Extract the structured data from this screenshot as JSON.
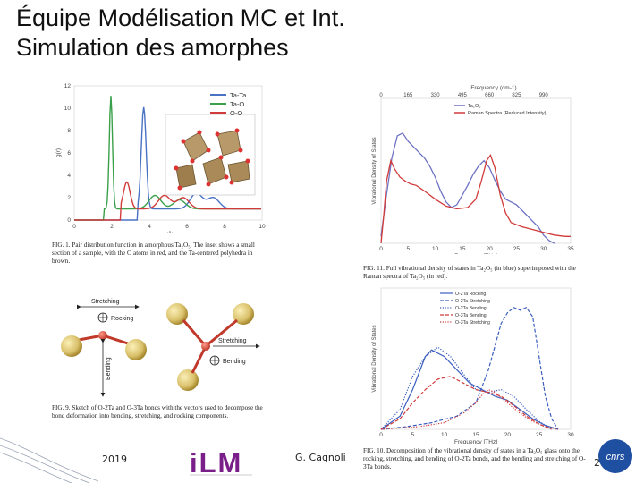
{
  "slide": {
    "title_line1": "Équipe Modélisation MC et Int.",
    "title_line2": "Simulation des amorphes"
  },
  "fig1": {
    "caption": "FIG. 1. Pair distribution function in amorphous Ta₂O₅. The inset shows a small section of a sample, with the O atoms in red, and the Ta-centered polyhedra in brown.",
    "chart_data": {
      "type": "line",
      "xlabel": "r (Å)",
      "ylabel": "g(r)",
      "xlim": [
        0,
        10
      ],
      "ylim": [
        0,
        12
      ],
      "x_ticks": [
        "0",
        "2",
        "4",
        "6",
        "8",
        "10"
      ],
      "y_ticks": [
        "0",
        "2",
        "4",
        "6",
        "8",
        "10",
        "12"
      ],
      "series": [
        {
          "name": "Ta-Ta",
          "color": "#4a72c4",
          "peaks": [
            [
              3.7,
              10.1
            ],
            [
              6.5,
              1.8
            ],
            [
              7.4,
              1.4
            ]
          ]
        },
        {
          "name": "Ta-O",
          "color": "#3aa04a",
          "peaks": [
            [
              1.95,
              11.1
            ],
            [
              4.3,
              1.6
            ],
            [
              5.6,
              1.2
            ]
          ]
        },
        {
          "name": "O-O",
          "color": "#d13b3b",
          "peaks": [
            [
              2.8,
              3.4
            ],
            [
              4.8,
              1.6
            ],
            [
              5.8,
              1.4
            ]
          ]
        }
      ]
    }
  },
  "fig11": {
    "caption": "FIG. 11. Full vibrational density of states in Ta₂O₅ (in blue) superimposed with the Raman spectra of Ta₂O₅ (in red).",
    "chart_data": {
      "type": "line",
      "xlabel": "Frequency [THz]",
      "ylabel": "Vibrational Density of States",
      "top_xlabel": "Frequency (cm-1)",
      "xlim": [
        0,
        35
      ],
      "x_ticks": [
        "0",
        "5",
        "10",
        "15",
        "20",
        "25",
        "30",
        "35"
      ],
      "top_ticks": [
        "0",
        "165",
        "330",
        "495",
        "660",
        "825",
        "990"
      ],
      "series": [
        {
          "name": "Ta₂O₅",
          "color": "#6d72c4",
          "points": [
            [
              0,
              0.05
            ],
            [
              1,
              0.35
            ],
            [
              2,
              0.62
            ],
            [
              3,
              0.78
            ],
            [
              4,
              0.8
            ],
            [
              5,
              0.74
            ],
            [
              6,
              0.7
            ],
            [
              7,
              0.66
            ],
            [
              8,
              0.62
            ],
            [
              9,
              0.56
            ],
            [
              10,
              0.48
            ],
            [
              11,
              0.38
            ],
            [
              12,
              0.3
            ],
            [
              13,
              0.26
            ],
            [
              14,
              0.28
            ],
            [
              15,
              0.35
            ],
            [
              16,
              0.42
            ],
            [
              17,
              0.5
            ],
            [
              18,
              0.56
            ],
            [
              19,
              0.6
            ],
            [
              20,
              0.55
            ],
            [
              21,
              0.46
            ],
            [
              22,
              0.38
            ],
            [
              23,
              0.32
            ],
            [
              24,
              0.3
            ],
            [
              25,
              0.28
            ],
            [
              26,
              0.24
            ],
            [
              27,
              0.2
            ],
            [
              28,
              0.16
            ],
            [
              29,
              0.12
            ],
            [
              30,
              0.06
            ],
            [
              31,
              0.02
            ],
            [
              32,
              0.0
            ]
          ]
        },
        {
          "name": "Raman Spectra (Reduced Intensity)",
          "color": "#d13b3b",
          "points": [
            [
              0,
              0.0
            ],
            [
              0.5,
              0.2
            ],
            [
              1,
              0.45
            ],
            [
              1.8,
              0.6
            ],
            [
              2.5,
              0.54
            ],
            [
              3.5,
              0.48
            ],
            [
              4.5,
              0.45
            ],
            [
              5.5,
              0.43
            ],
            [
              6.5,
              0.42
            ],
            [
              8,
              0.38
            ],
            [
              10,
              0.32
            ],
            [
              12,
              0.27
            ],
            [
              14,
              0.25
            ],
            [
              16,
              0.26
            ],
            [
              17.5,
              0.32
            ],
            [
              18.5,
              0.45
            ],
            [
              19.5,
              0.6
            ],
            [
              20.2,
              0.64
            ],
            [
              21,
              0.55
            ],
            [
              22,
              0.35
            ],
            [
              23,
              0.22
            ],
            [
              24,
              0.15
            ],
            [
              26,
              0.12
            ],
            [
              28,
              0.1
            ],
            [
              30,
              0.08
            ],
            [
              32,
              0.06
            ],
            [
              34,
              0.05
            ],
            [
              35,
              0.05
            ]
          ]
        }
      ]
    }
  },
  "fig9": {
    "caption": "FIG. 9. Sketch of O-2Ta and O-3Ta bonds with the vectors used to decompose the bond deformation into bending, stretching, and rocking components.",
    "labels": {
      "stretching_top": "Stretching",
      "rocking": "Rocking",
      "bending_left": "Bending",
      "stretching_right": "Stretching",
      "bending_right": "Bending"
    }
  },
  "fig10": {
    "caption": "FIG. 10. Decomposition of the vibrational density of states in a Ta₂O₅ glass onto the rocking, stretching, and bending of O-2Ta bonds, and the bending and stretching of O-3Ta bonds.",
    "chart_data": {
      "type": "line",
      "xlabel": "Frequency [THz]",
      "ylabel": "Vibrational Density of States",
      "xlim": [
        0,
        30
      ],
      "x_ticks": [
        "0",
        "5",
        "10",
        "15",
        "20",
        "25",
        "30"
      ],
      "series": [
        {
          "name": "O-2Ta Rocking",
          "color": "#3b5fc0",
          "style": "solid",
          "points": [
            [
              0,
              0
            ],
            [
              3,
              0.1
            ],
            [
              5,
              0.3
            ],
            [
              7,
              0.55
            ],
            [
              8,
              0.6
            ],
            [
              10,
              0.55
            ],
            [
              12,
              0.45
            ],
            [
              14,
              0.35
            ],
            [
              16,
              0.3
            ],
            [
              18,
              0.25
            ],
            [
              20,
              0.22
            ],
            [
              22,
              0.15
            ],
            [
              24,
              0.08
            ],
            [
              26,
              0.03
            ],
            [
              28,
              0.0
            ]
          ]
        },
        {
          "name": "O-2Ta Stretching",
          "color": "#3b5fc0",
          "style": "dashed",
          "points": [
            [
              0,
              0
            ],
            [
              4,
              0.02
            ],
            [
              8,
              0.05
            ],
            [
              12,
              0.1
            ],
            [
              15,
              0.2
            ],
            [
              17,
              0.45
            ],
            [
              19,
              0.8
            ],
            [
              20,
              0.88
            ],
            [
              21,
              0.92
            ],
            [
              22,
              0.9
            ],
            [
              23,
              0.92
            ],
            [
              24,
              0.85
            ],
            [
              25,
              0.55
            ],
            [
              26,
              0.25
            ],
            [
              27,
              0.08
            ],
            [
              28,
              0.0
            ]
          ]
        },
        {
          "name": "O-2Ta Bending",
          "color": "#3b5fc0",
          "style": "dotted",
          "points": [
            [
              0,
              0
            ],
            [
              3,
              0.15
            ],
            [
              5,
              0.4
            ],
            [
              7,
              0.55
            ],
            [
              9,
              0.62
            ],
            [
              11,
              0.55
            ],
            [
              13,
              0.42
            ],
            [
              15,
              0.3
            ],
            [
              17,
              0.28
            ],
            [
              19,
              0.3
            ],
            [
              21,
              0.25
            ],
            [
              23,
              0.15
            ],
            [
              25,
              0.06
            ],
            [
              27,
              0.0
            ]
          ]
        },
        {
          "name": "O-3Ta Bending",
          "color": "#d13b3b",
          "style": "dashed",
          "points": [
            [
              0,
              0
            ],
            [
              3,
              0.08
            ],
            [
              5,
              0.2
            ],
            [
              7,
              0.3
            ],
            [
              9,
              0.38
            ],
            [
              11,
              0.4
            ],
            [
              13,
              0.35
            ],
            [
              15,
              0.3
            ],
            [
              17,
              0.28
            ],
            [
              19,
              0.25
            ],
            [
              21,
              0.18
            ],
            [
              23,
              0.1
            ],
            [
              25,
              0.04
            ],
            [
              27,
              0.0
            ]
          ]
        },
        {
          "name": "O-3Ta Stretching",
          "color": "#d13b3b",
          "style": "dotted",
          "points": [
            [
              0,
              0
            ],
            [
              6,
              0.02
            ],
            [
              10,
              0.05
            ],
            [
              13,
              0.12
            ],
            [
              15,
              0.2
            ],
            [
              16,
              0.26
            ],
            [
              17,
              0.3
            ],
            [
              18,
              0.28
            ],
            [
              20,
              0.2
            ],
            [
              22,
              0.12
            ],
            [
              24,
              0.06
            ],
            [
              26,
              0.02
            ],
            [
              28,
              0.0
            ]
          ]
        }
      ]
    }
  },
  "footer": {
    "year": "2019",
    "logo_text": "iLM",
    "author": "G. Cagnoli",
    "page": "2",
    "cnrs": "cnrs"
  }
}
